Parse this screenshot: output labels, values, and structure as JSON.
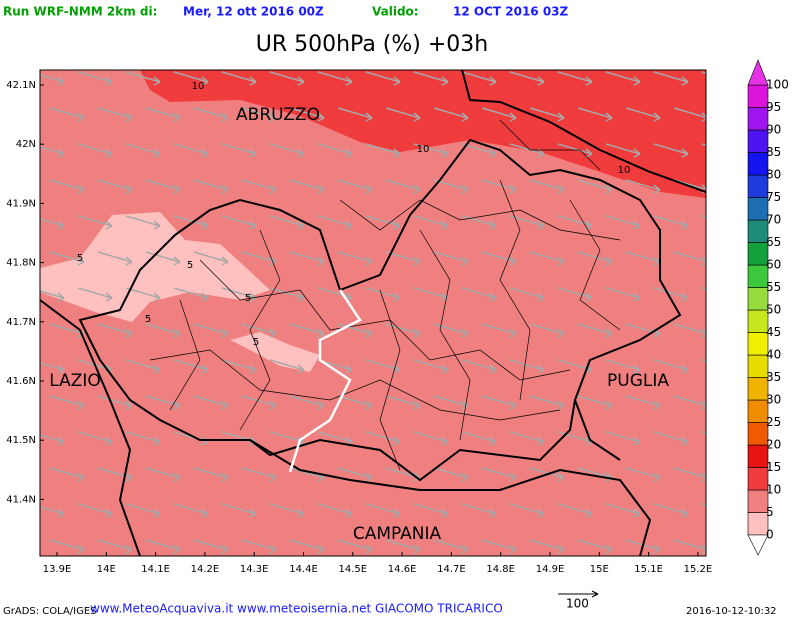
{
  "header": {
    "run_label": "Run WRF-NMM 2km di:",
    "run_date": "Mer, 12 ott 2016 00Z",
    "valid_label": "Valido:",
    "valid_date": "12 OCT 2016 03Z"
  },
  "title": "UR 500hPa (%) +03h",
  "map": {
    "lat_labels": [
      "42.1N",
      "42N",
      "41.9N",
      "41.8N",
      "41.7N",
      "41.6N",
      "41.5N",
      "41.4N"
    ],
    "lon_labels": [
      "13.9E",
      "14E",
      "14.1E",
      "14.2E",
      "14.3E",
      "14.4E",
      "14.5E",
      "14.6E",
      "14.7E",
      "14.8E",
      "14.9E",
      "15E",
      "15.1E",
      "15.2E"
    ],
    "regions": [
      "ABRUZZO",
      "LAZIO",
      "PUGLIA",
      "CAMPANIA"
    ],
    "contour_labels": [
      "10",
      "10",
      "10",
      "5",
      "5",
      "5",
      "5",
      "5"
    ]
  },
  "colorbar": {
    "levels": [
      0,
      5,
      10,
      15,
      20,
      25,
      30,
      35,
      40,
      45,
      50,
      55,
      60,
      65,
      70,
      75,
      80,
      85,
      90,
      95,
      100
    ],
    "colors": [
      "#ffc0c0",
      "#f08080",
      "#f03c3c",
      "#e81414",
      "#f05a00",
      "#f08c00",
      "#f0b400",
      "#e6dc00",
      "#f0f000",
      "#c8e61e",
      "#96dc3c",
      "#3cc83c",
      "#14a03c",
      "#1e8c78",
      "#1e6eb4",
      "#1e3cdc",
      "#1414f0",
      "#5014f0",
      "#a014f0",
      "#dc14dc"
    ],
    "below_color": "#ffffff",
    "above_color": "#e632e6"
  },
  "footer": {
    "software": "GrADS: COLA/IGES",
    "credits": "www.MeteoAcquaviva.it www.meteoisernia.net GIACOMO TRICARICO",
    "vector_scale": "100",
    "timestamp": "2016-10-12-10:32"
  }
}
